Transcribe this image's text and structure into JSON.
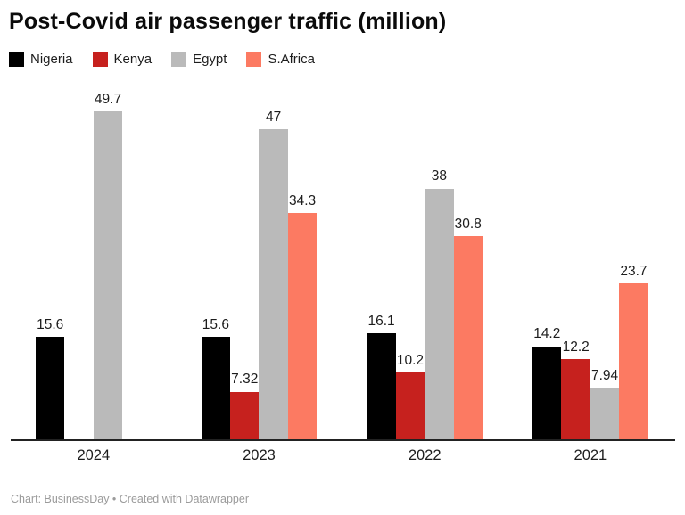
{
  "title": "Post-Covid air passenger traffic (million)",
  "footer": "Chart: BusinessDay • Created with Datawrapper",
  "legend": [
    {
      "label": "Nigeria",
      "color": "#000000"
    },
    {
      "label": "Kenya",
      "color": "#c6211e"
    },
    {
      "label": "Egypt",
      "color": "#bababa"
    },
    {
      "label": "S.Africa",
      "color": "#fc7a62"
    }
  ],
  "chart_data": {
    "type": "bar",
    "title": "Post-Covid air passenger traffic (million)",
    "xlabel": "",
    "ylabel": "",
    "categories": [
      "2024",
      "2023",
      "2022",
      "2021"
    ],
    "series": [
      {
        "name": "Nigeria",
        "color": "#000000",
        "values": [
          15.6,
          15.6,
          16.1,
          14.2
        ]
      },
      {
        "name": "Kenya",
        "color": "#c6211e",
        "values": [
          null,
          7.32,
          10.2,
          12.2
        ]
      },
      {
        "name": "Egypt",
        "color": "#bababa",
        "values": [
          49.7,
          47,
          38,
          7.94
        ]
      },
      {
        "name": "S.Africa",
        "color": "#fc7a62",
        "values": [
          null,
          34.3,
          30.8,
          23.7
        ]
      }
    ],
    "ylim": [
      0,
      52
    ],
    "grid": false,
    "value_labels_shown": true,
    "legend_position": "top-left",
    "source_credit": "Chart: BusinessDay • Created with Datawrapper"
  }
}
